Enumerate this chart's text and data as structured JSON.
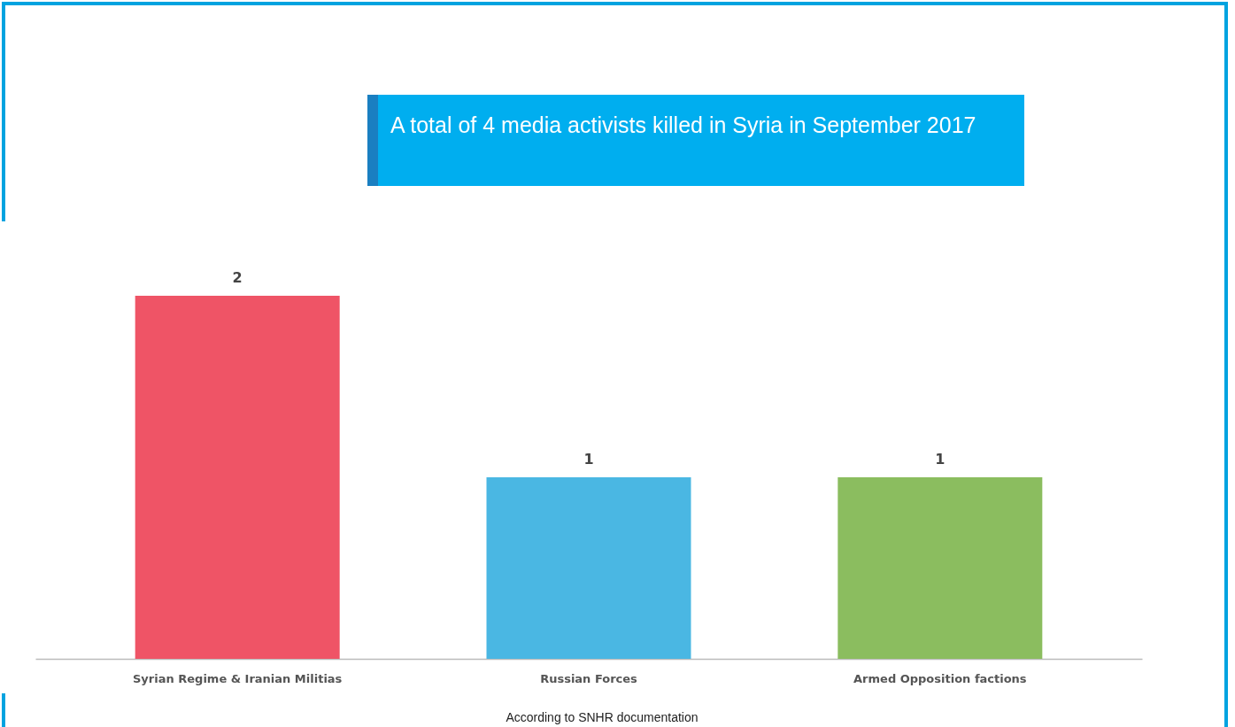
{
  "chart_data": {
    "type": "bar",
    "title": "A total of 4 media activists killed in Syria in September 2017",
    "categories": [
      "Syrian Regime & Iranian Militias",
      "Russian Forces",
      "Armed Opposition factions"
    ],
    "values": [
      2,
      1,
      1
    ],
    "colors": [
      "#ef5466",
      "#4ab7e3",
      "#8bbd5f"
    ],
    "data_labels": true,
    "annotations": [
      "According to SNHR documentation"
    ]
  }
}
